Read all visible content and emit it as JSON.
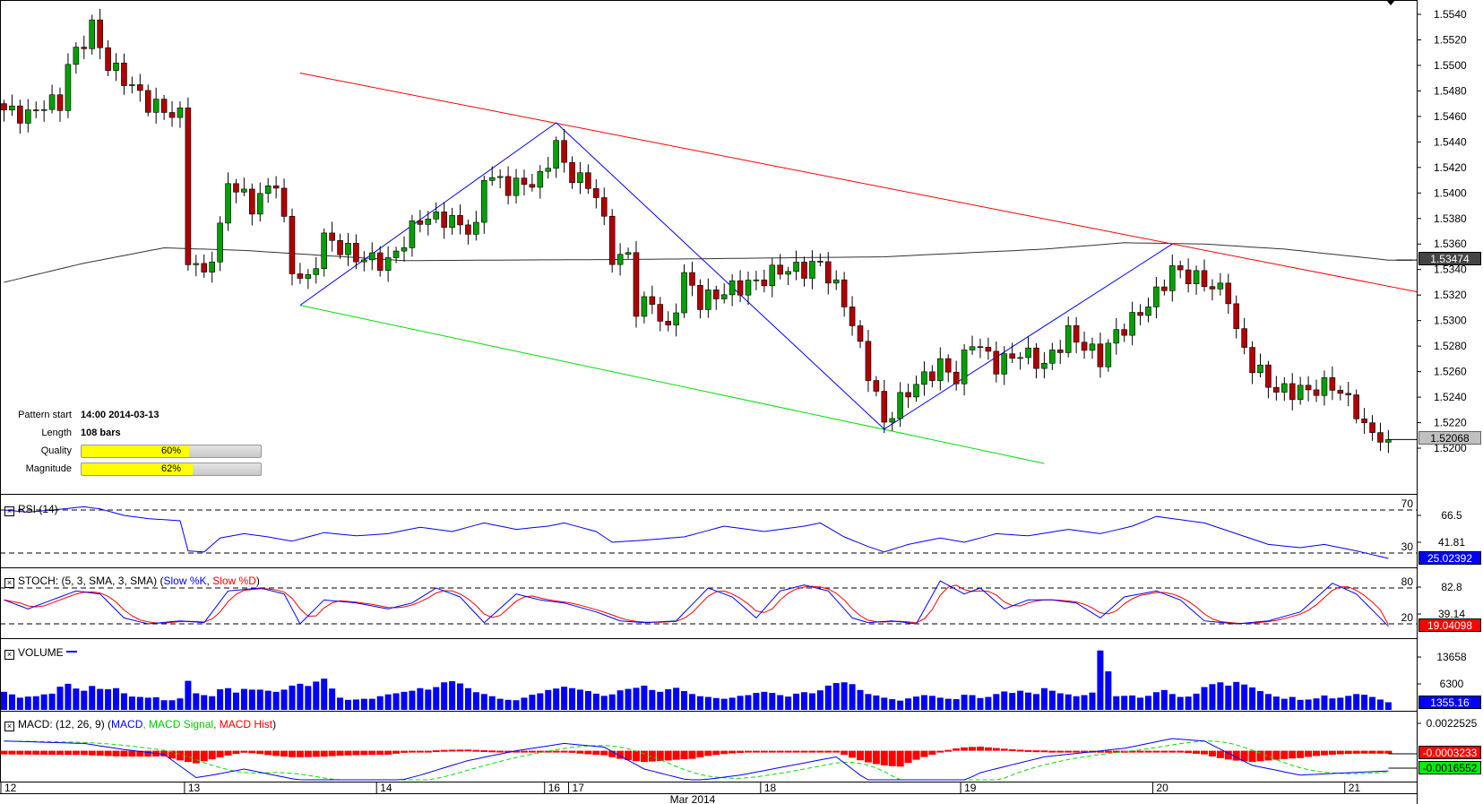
{
  "pattern_info": {
    "pattern_start_label": "Pattern start",
    "pattern_start_value": "14:00 2014-03-13",
    "length_label": "Length",
    "length_value": "108 bars",
    "quality_label": "Quality",
    "quality_pct": 60,
    "quality_text": "60%",
    "magnitude_label": "Magnitude",
    "magnitude_pct": 62,
    "magnitude_text": "62%"
  },
  "legends": {
    "rsi": "RSI (14)",
    "stoch_prefix": "STOCH: (5, 3, SMA, 3, SMA) (",
    "stoch_k": "Slow %K",
    "stoch_sep": ", ",
    "stoch_d": "Slow %D",
    "stoch_suffix": ")",
    "volume": "VOLUME",
    "macd_prefix": "MACD: (12, 26, 9) (",
    "macd_line": "MACD",
    "macd_signal": "MACD Signal",
    "macd_hist": "MACD Hist",
    "macd_suffix": ")"
  },
  "tags": {
    "sma": "1.53474",
    "last_price": "1.52068",
    "rsi": "25.02392",
    "stoch": "19.04098",
    "volume": "1355.16",
    "macd_hist": "-0.0003233",
    "macd_signal": "-0.0016552"
  },
  "colors": {
    "bull": "#00a000",
    "bear": "#b00000",
    "resistance": "#ff0000",
    "support": "#00e000",
    "zigzag": "#0000ff",
    "sma": "#333333",
    "rsi": "#0000ff",
    "stoch_k": "#0000ff",
    "stoch_d": "#ff0000",
    "volume": "#0000ff",
    "macd": "#0000ff",
    "signal": "#00e000",
    "hist": "#ff0000"
  },
  "chart_data": {
    "type": "candlestick",
    "title": "",
    "x_axis": {
      "date_labels": [
        {
          "bar": 0,
          "label": "12"
        },
        {
          "bar": 23,
          "label": "13"
        },
        {
          "bar": 47,
          "label": "14"
        },
        {
          "bar": 68,
          "label": "16"
        },
        {
          "bar": 71,
          "label": "17"
        },
        {
          "bar": 95,
          "label": "18"
        },
        {
          "bar": 120,
          "label": "19"
        },
        {
          "bar": 144,
          "label": "20"
        },
        {
          "bar": 168,
          "label": "21"
        }
      ],
      "month_label": "Mar 2014",
      "bar_count": 174
    },
    "price_axis": {
      "ylim": [
        1.519,
        1.5545
      ],
      "ticks": [
        "1.5540",
        "1.5520",
        "1.5500",
        "1.5480",
        "1.5460",
        "1.5440",
        "1.5420",
        "1.5400",
        "1.5380",
        "1.5360",
        "1.5340",
        "1.5320",
        "1.5300",
        "1.5280",
        "1.5260",
        "1.5240",
        "1.5220",
        "1.5200"
      ]
    },
    "close_waypoints": [
      [
        0,
        1.5465
      ],
      [
        3,
        1.546
      ],
      [
        5,
        1.547
      ],
      [
        7,
        1.547
      ],
      [
        8,
        1.55
      ],
      [
        10,
        1.552
      ],
      [
        11,
        1.553
      ],
      [
        13,
        1.55
      ],
      [
        15,
        1.549
      ],
      [
        18,
        1.547
      ],
      [
        22,
        1.546
      ],
      [
        23,
        1.535
      ],
      [
        25,
        1.5335
      ],
      [
        27,
        1.537
      ],
      [
        28,
        1.541
      ],
      [
        31,
        1.539
      ],
      [
        34,
        1.541
      ],
      [
        36,
        1.534
      ],
      [
        38,
        1.533
      ],
      [
        40,
        1.5365
      ],
      [
        44,
        1.535
      ],
      [
        48,
        1.5345
      ],
      [
        52,
        1.538
      ],
      [
        55,
        1.538
      ],
      [
        59,
        1.537
      ],
      [
        60,
        1.5415
      ],
      [
        63,
        1.5405
      ],
      [
        67,
        1.541
      ],
      [
        69,
        1.544
      ],
      [
        70,
        1.542
      ],
      [
        74,
        1.54
      ],
      [
        76,
        1.535
      ],
      [
        78,
        1.535
      ],
      [
        79,
        1.531
      ],
      [
        81,
        1.5315
      ],
      [
        83,
        1.529
      ],
      [
        85,
        1.5335
      ],
      [
        87,
        1.5315
      ],
      [
        91,
        1.5325
      ],
      [
        94,
        1.533
      ],
      [
        97,
        1.534
      ],
      [
        100,
        1.534
      ],
      [
        102,
        1.5345
      ],
      [
        105,
        1.5315
      ],
      [
        108,
        1.526
      ],
      [
        110,
        1.522
      ],
      [
        113,
        1.5245
      ],
      [
        117,
        1.5265
      ],
      [
        119,
        1.5255
      ],
      [
        121,
        1.5285
      ],
      [
        124,
        1.5265
      ],
      [
        127,
        1.5275
      ],
      [
        130,
        1.5265
      ],
      [
        133,
        1.529
      ],
      [
        137,
        1.527
      ],
      [
        139,
        1.529
      ],
      [
        141,
        1.53
      ],
      [
        144,
        1.532
      ],
      [
        146,
        1.534
      ],
      [
        150,
        1.533
      ],
      [
        153,
        1.532
      ],
      [
        154,
        1.529
      ],
      [
        156,
        1.5265
      ],
      [
        159,
        1.5245
      ],
      [
        163,
        1.5245
      ],
      [
        166,
        1.525
      ],
      [
        169,
        1.523
      ],
      [
        170,
        1.5215
      ],
      [
        173,
        1.52068
      ]
    ],
    "sma_waypoints": [
      [
        0,
        1.533
      ],
      [
        10,
        1.5345
      ],
      [
        20,
        1.5357
      ],
      [
        30,
        1.5355
      ],
      [
        50,
        1.5347
      ],
      [
        80,
        1.5348
      ],
      [
        110,
        1.535
      ],
      [
        130,
        1.5356
      ],
      [
        140,
        1.5361
      ],
      [
        150,
        1.536
      ],
      [
        160,
        1.5356
      ],
      [
        173,
        1.53474
      ]
    ],
    "resistance_line": [
      [
        37,
        1.5494
      ],
      [
        177,
        1.5322
      ]
    ],
    "support_line": [
      [
        37,
        1.5312
      ],
      [
        130,
        1.5188
      ]
    ],
    "zigzag": [
      [
        37,
        1.5312
      ],
      [
        69,
        1.5455
      ],
      [
        110,
        1.5215
      ],
      [
        146,
        1.536
      ]
    ],
    "rsi": {
      "ylim": [
        0,
        100
      ],
      "levels": [
        70,
        30
      ],
      "level_labels": [
        "70",
        "30"
      ],
      "axis_labels": [
        "66.5",
        "41.81"
      ],
      "waypoints": [
        [
          0,
          70
        ],
        [
          3,
          68
        ],
        [
          6,
          70
        ],
        [
          10,
          73
        ],
        [
          12,
          71
        ],
        [
          15,
          65
        ],
        [
          18,
          62
        ],
        [
          22,
          60
        ],
        [
          23,
          32
        ],
        [
          25,
          31
        ],
        [
          27,
          44
        ],
        [
          30,
          48
        ],
        [
          33,
          45
        ],
        [
          36,
          41
        ],
        [
          38,
          45
        ],
        [
          40,
          49
        ],
        [
          44,
          46
        ],
        [
          48,
          48
        ],
        [
          52,
          54
        ],
        [
          56,
          50
        ],
        [
          60,
          58
        ],
        [
          64,
          52
        ],
        [
          68,
          55
        ],
        [
          70,
          58
        ],
        [
          74,
          50
        ],
        [
          76,
          40
        ],
        [
          80,
          42
        ],
        [
          85,
          45
        ],
        [
          90,
          55
        ],
        [
          95,
          50
        ],
        [
          100,
          55
        ],
        [
          102,
          58
        ],
        [
          105,
          45
        ],
        [
          108,
          36
        ],
        [
          110,
          31
        ],
        [
          113,
          38
        ],
        [
          117,
          44
        ],
        [
          120,
          40
        ],
        [
          124,
          48
        ],
        [
          128,
          46
        ],
        [
          133,
          52
        ],
        [
          137,
          48
        ],
        [
          141,
          55
        ],
        [
          144,
          64
        ],
        [
          146,
          62
        ],
        [
          150,
          58
        ],
        [
          154,
          48
        ],
        [
          158,
          38
        ],
        [
          162,
          35
        ],
        [
          165,
          38
        ],
        [
          169,
          32
        ],
        [
          173,
          25.02
        ]
      ]
    },
    "stoch": {
      "ylim": [
        0,
        100
      ],
      "levels": [
        80,
        20
      ],
      "level_labels": [
        "80",
        "20"
      ],
      "axis_labels": [
        "82.8",
        "39.14"
      ],
      "k_waypoints": [
        [
          0,
          60
        ],
        [
          3,
          45
        ],
        [
          6,
          60
        ],
        [
          9,
          75
        ],
        [
          12,
          70
        ],
        [
          15,
          30
        ],
        [
          18,
          20
        ],
        [
          22,
          25
        ],
        [
          25,
          22
        ],
        [
          28,
          75
        ],
        [
          32,
          80
        ],
        [
          35,
          70
        ],
        [
          37,
          20
        ],
        [
          40,
          60
        ],
        [
          44,
          55
        ],
        [
          48,
          45
        ],
        [
          51,
          55
        ],
        [
          54,
          80
        ],
        [
          57,
          65
        ],
        [
          60,
          22
        ],
        [
          64,
          70
        ],
        [
          67,
          60
        ],
        [
          70,
          55
        ],
        [
          74,
          40
        ],
        [
          77,
          25
        ],
        [
          80,
          22
        ],
        [
          84,
          25
        ],
        [
          88,
          80
        ],
        [
          91,
          65
        ],
        [
          94,
          30
        ],
        [
          97,
          75
        ],
        [
          100,
          85
        ],
        [
          103,
          75
        ],
        [
          106,
          30
        ],
        [
          108,
          22
        ],
        [
          111,
          25
        ],
        [
          114,
          20
        ],
        [
          117,
          92
        ],
        [
          120,
          70
        ],
        [
          122,
          80
        ],
        [
          125,
          45
        ],
        [
          128,
          60
        ],
        [
          131,
          60
        ],
        [
          134,
          55
        ],
        [
          137,
          30
        ],
        [
          140,
          65
        ],
        [
          144,
          75
        ],
        [
          147,
          60
        ],
        [
          150,
          25
        ],
        [
          154,
          20
        ],
        [
          158,
          25
        ],
        [
          162,
          40
        ],
        [
          166,
          88
        ],
        [
          169,
          70
        ],
        [
          173,
          16
        ]
      ]
    },
    "volume": {
      "axis_labels": [
        "13658",
        "6300"
      ],
      "values": [
        4200,
        3500,
        2600,
        2900,
        3000,
        3500,
        3700,
        5600,
        6400,
        5100,
        4500,
        5800,
        5000,
        4900,
        5200,
        3800,
        2900,
        2800,
        2600,
        2700,
        1900,
        1900,
        2400,
        7200,
        3800,
        3300,
        3000,
        4900,
        5200,
        4000,
        5000,
        4800,
        4800,
        4500,
        4200,
        4800,
        5900,
        6400,
        5800,
        7000,
        7800,
        5100,
        2600,
        2000,
        2100,
        2300,
        2300,
        3000,
        3500,
        3800,
        4200,
        4500,
        5200,
        4800,
        5500,
        6800,
        7100,
        6500,
        5200,
        4100,
        3600,
        3000,
        2300,
        2000,
        1900,
        2600,
        3400,
        3800,
        4700,
        5100,
        5600,
        5200,
        4800,
        4400,
        3700,
        3100,
        3500,
        4600,
        5000,
        5300,
        5900,
        4700,
        4200,
        4900,
        5300,
        4400,
        3600,
        3000,
        2800,
        2500,
        2300,
        2600,
        3100,
        3300,
        3900,
        4200,
        3900,
        3300,
        2900,
        3700,
        4100,
        3800,
        4600,
        5900,
        6600,
        6800,
        6300,
        4700,
        3600,
        3200,
        2600,
        2200,
        1800,
        2400,
        2900,
        3300,
        3100,
        2600,
        2300,
        2200,
        3400,
        3300,
        2500,
        2800,
        3600,
        4300,
        3900,
        4500,
        4000,
        3600,
        5200,
        4500,
        3800,
        3500,
        3000,
        3300,
        4000,
        15500,
        9800,
        3000,
        3100,
        3200,
        2600,
        3100,
        4100,
        4700,
        3600,
        2800,
        2900,
        3700,
        5500,
        6300,
        6800,
        5900,
        6900,
        6200,
        5400,
        4400,
        3600,
        2900,
        2300,
        2800,
        2000,
        2100,
        2400,
        3200,
        2400,
        2600,
        3100,
        3600,
        3400,
        2800,
        2100,
        1355
      ]
    },
    "macd": {
      "axis_labels": [
        "0.0022525"
      ],
      "macd_waypoints": [
        [
          0,
          0.0008
        ],
        [
          10,
          0.0006
        ],
        [
          15,
          0.0001
        ],
        [
          20,
          -0.0003
        ],
        [
          24,
          -0.0022
        ],
        [
          26,
          -0.002
        ],
        [
          30,
          -0.0015
        ],
        [
          36,
          -0.0023
        ],
        [
          40,
          -0.0026
        ],
        [
          48,
          -0.0027
        ],
        [
          52,
          -0.002
        ],
        [
          58,
          -0.0008
        ],
        [
          64,
          0.0
        ],
        [
          70,
          0.0006
        ],
        [
          75,
          0.0003
        ],
        [
          80,
          -0.0015
        ],
        [
          86,
          -0.0025
        ],
        [
          92,
          -0.002
        ],
        [
          100,
          -0.001
        ],
        [
          104,
          -0.0005
        ],
        [
          108,
          -0.0025
        ],
        [
          112,
          -0.0045
        ],
        [
          116,
          -0.0038
        ],
        [
          122,
          -0.0018
        ],
        [
          130,
          -0.0005
        ],
        [
          140,
          0.0002
        ],
        [
          146,
          0.001
        ],
        [
          150,
          0.0008
        ],
        [
          156,
          -0.0012
        ],
        [
          162,
          -0.002
        ],
        [
          168,
          -0.0018
        ],
        [
          173,
          -0.0016552
        ]
      ],
      "ylim": [
        -0.0048,
        0.003
      ]
    }
  }
}
